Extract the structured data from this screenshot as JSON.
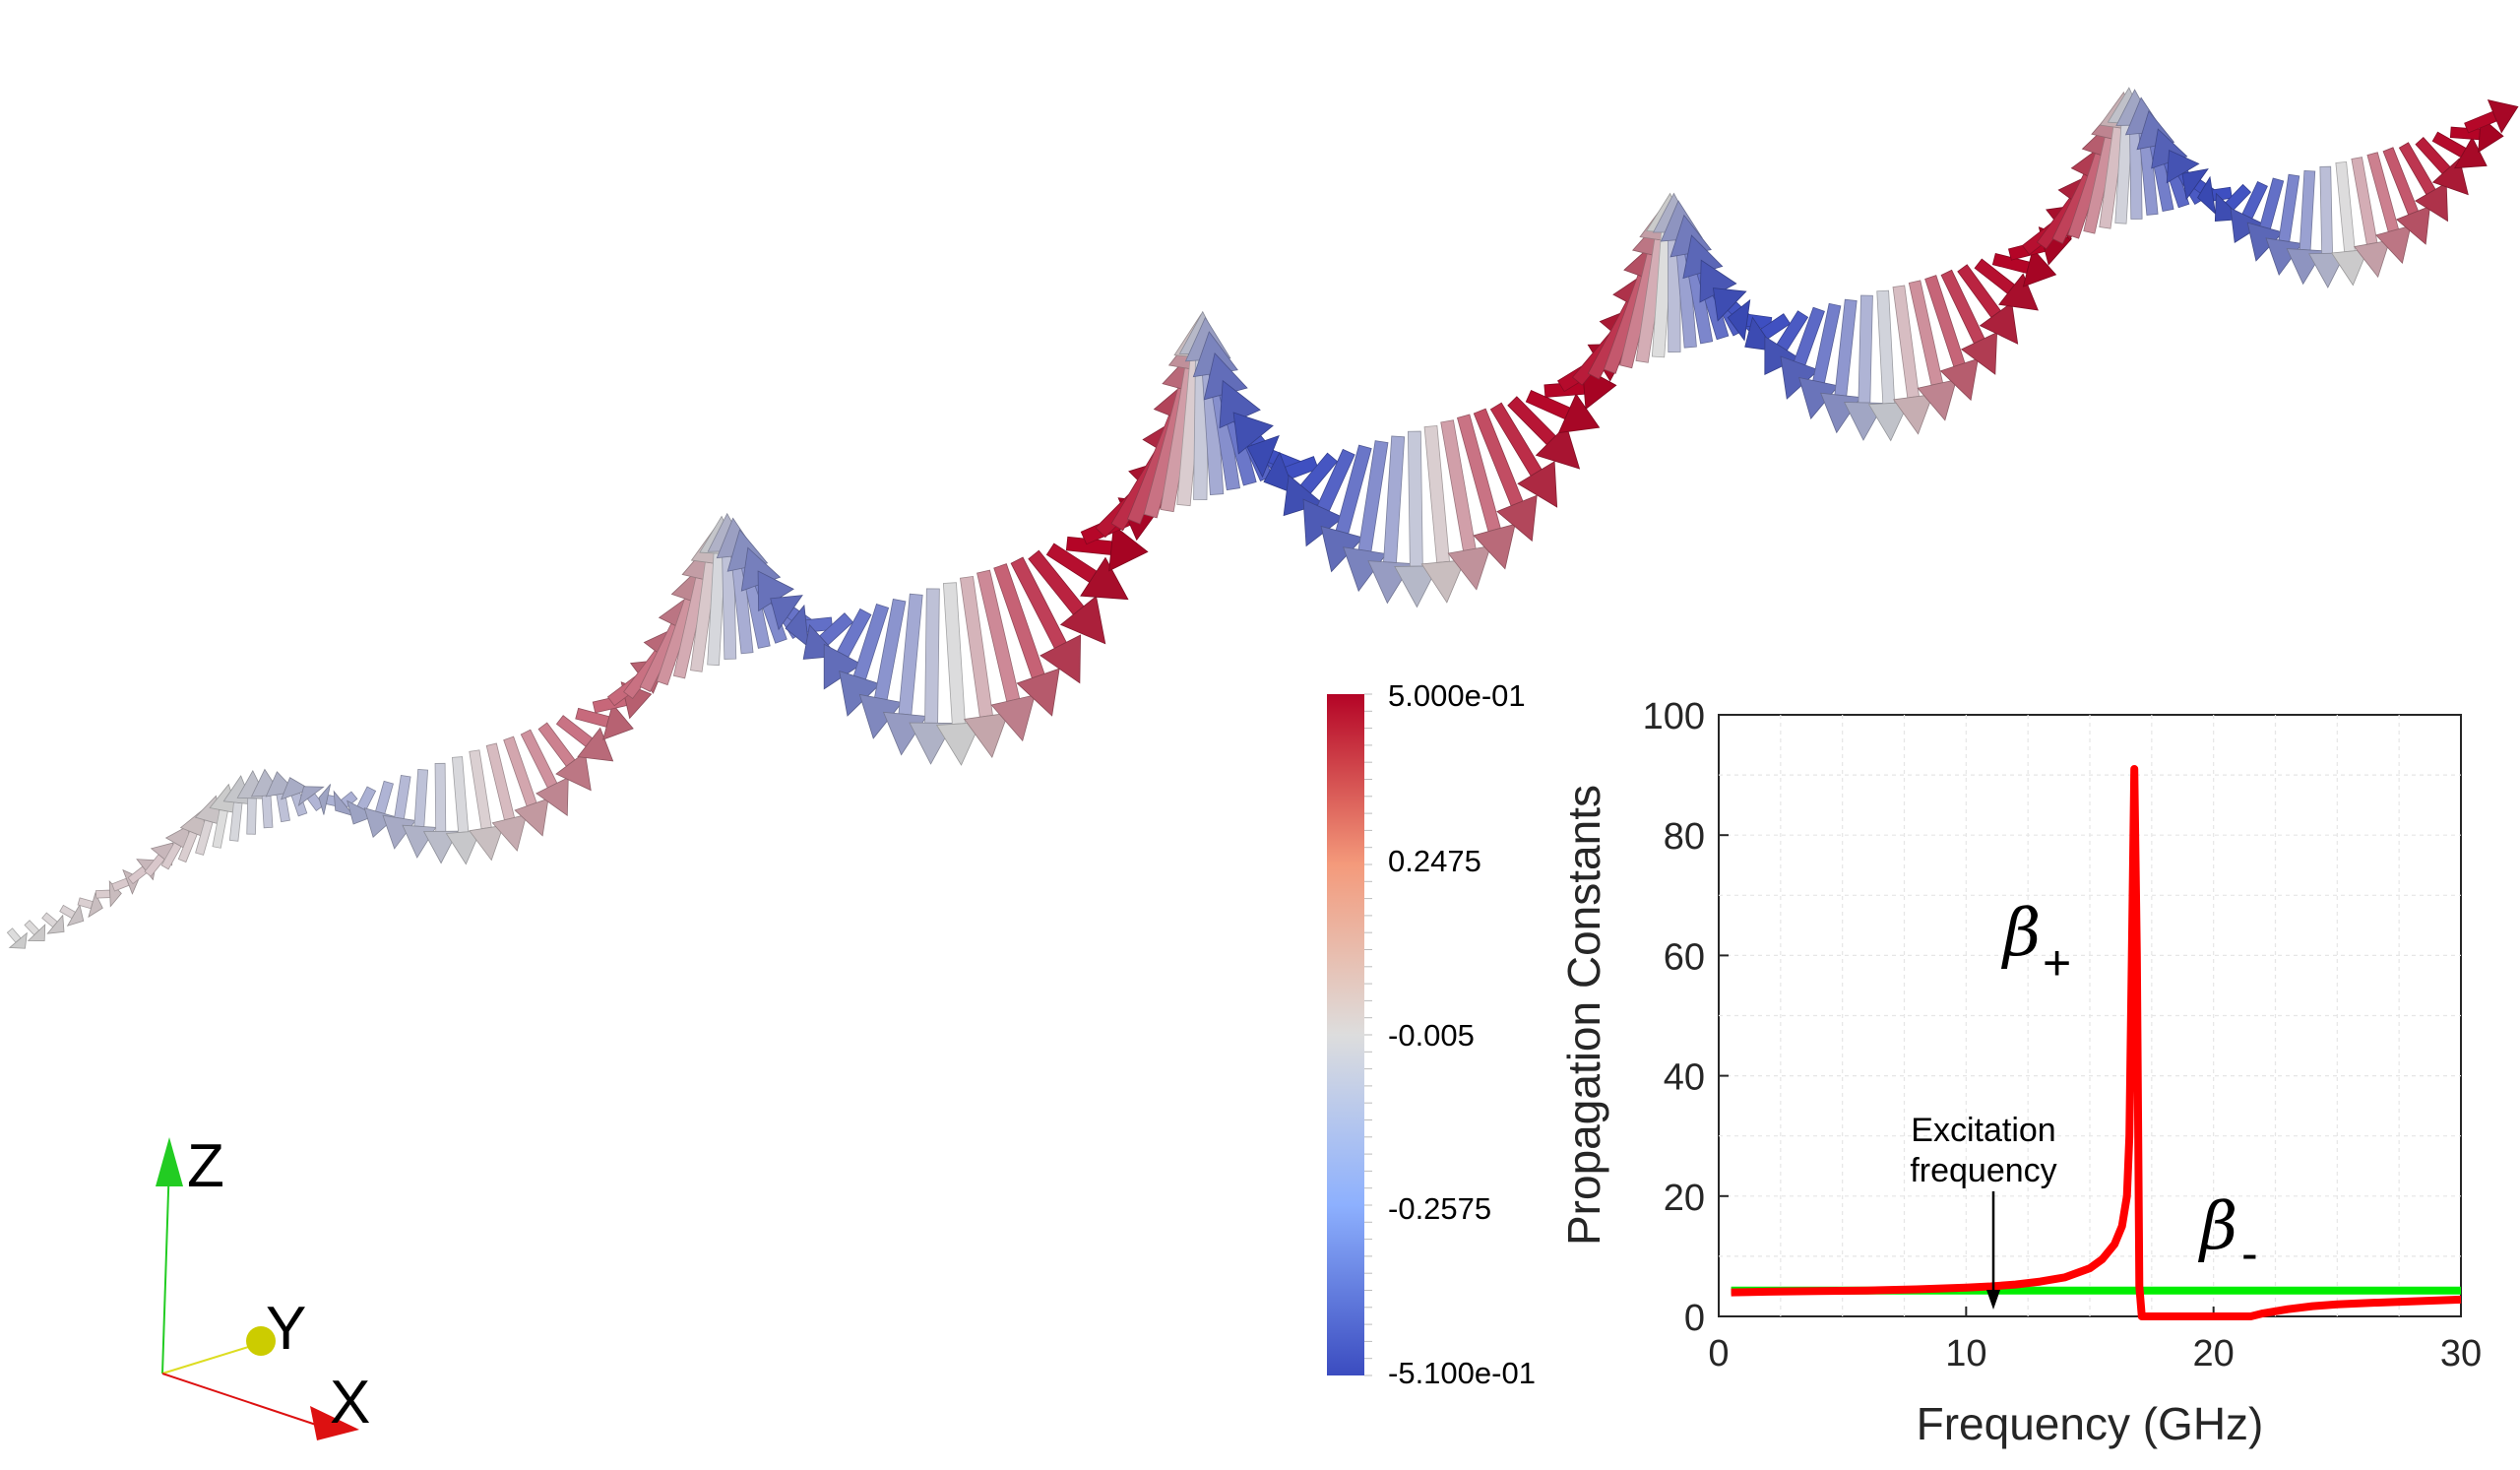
{
  "colorbar": {
    "max_label": "5.000e-01",
    "mid_high_label": "0.2475",
    "mid_label": "-0.005",
    "mid_low_label": "-0.2575",
    "min_label": "-5.100e-01",
    "range": [
      -0.51,
      0.5
    ],
    "colors": {
      "low": "#3b4cc0",
      "mid": "#dddddd",
      "high": "#b40426"
    }
  },
  "orientation_axes": {
    "z_label": "Z",
    "y_label": "Y",
    "x_label": "X",
    "colors": {
      "z": "#22cc22",
      "y": "#cccc00",
      "x": "#dd1111"
    }
  },
  "chart_data": {
    "type": "line",
    "xlabel": "Frequency (GHz)",
    "ylabel": "Propagation Constants",
    "xlim": [
      0,
      30
    ],
    "ylim": [
      0,
      100
    ],
    "xticks": [
      "0",
      "10",
      "20",
      "30"
    ],
    "yticks": [
      "0",
      "20",
      "40",
      "60",
      "80",
      "100"
    ],
    "grid": true,
    "annotation": {
      "text_line1": "Excitation",
      "text_line2": "frequency",
      "x": 11
    },
    "series": [
      {
        "name": "β+",
        "color": "#ff0000",
        "x": [
          0.5,
          2,
          4,
          6,
          8,
          10,
          11,
          12,
          13,
          14,
          15,
          15.5,
          16,
          16.3,
          16.5,
          16.6,
          16.7,
          16.8,
          16.9,
          17.0,
          17.1,
          17.3,
          18,
          20,
          21.5,
          22,
          23,
          24,
          25,
          26,
          28,
          30
        ],
        "y": [
          4,
          4.1,
          4.2,
          4.3,
          4.5,
          4.8,
          5.0,
          5.3,
          5.8,
          6.5,
          8,
          9.5,
          12,
          15,
          20,
          30,
          60,
          91,
          60,
          5,
          0,
          0,
          0,
          0,
          0,
          0.5,
          1.2,
          1.7,
          2.0,
          2.2,
          2.5,
          2.8
        ]
      },
      {
        "name": "β-",
        "color": "#00ee00",
        "x": [
          0.5,
          30
        ],
        "y": [
          4.3,
          4.3
        ]
      }
    ],
    "labels": {
      "beta_plus": "β",
      "beta_plus_sub": "+",
      "beta_minus": "β",
      "beta_minus_sub": "-"
    }
  }
}
